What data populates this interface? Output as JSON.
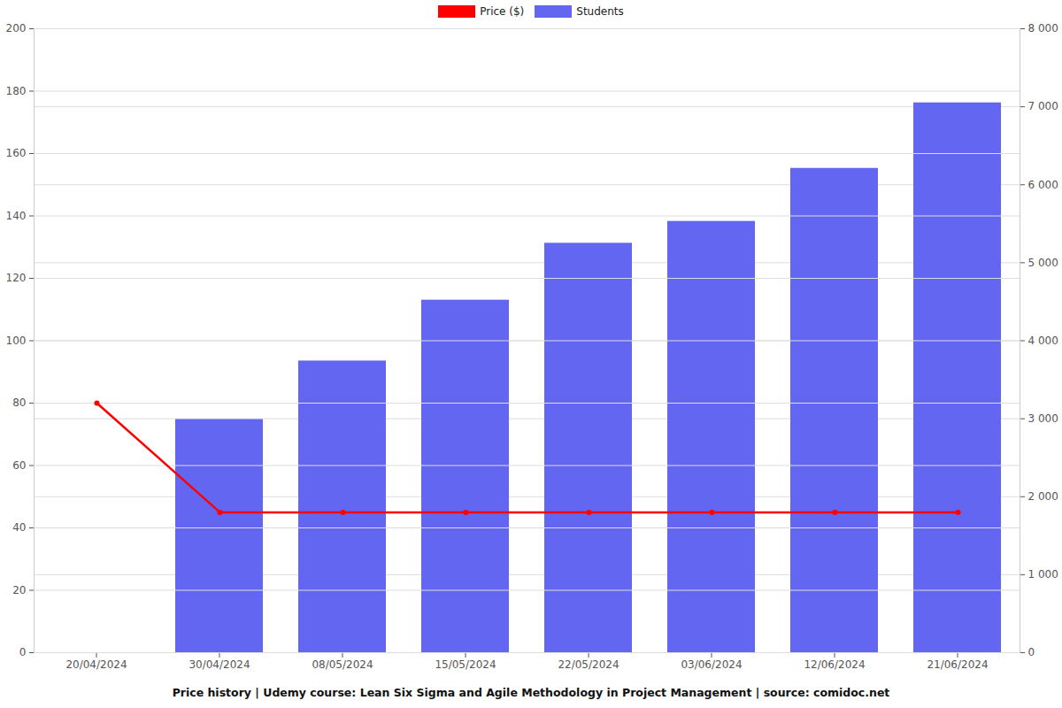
{
  "chart_data": {
    "type": "bar",
    "title": "Price history | Udemy course: Lean Six Sigma and Agile Methodology in Project Management | source: comidoc.net",
    "categories": [
      "20/04/2024",
      "30/04/2024",
      "08/05/2024",
      "15/05/2024",
      "22/05/2024",
      "03/06/2024",
      "12/06/2024",
      "21/06/2024"
    ],
    "series": [
      {
        "name": "Price ($)",
        "type": "line",
        "color": "#ff0000",
        "marker": "circle",
        "values": [
          80,
          45,
          45,
          45,
          45,
          45,
          45,
          45
        ]
      },
      {
        "name": "Students",
        "type": "bar",
        "color": "#6366f1",
        "axis": "y2",
        "values": [
          null,
          2990,
          3740,
          4520,
          5250,
          5530,
          6210,
          7050
        ]
      }
    ],
    "ylim": [
      0,
      200
    ],
    "yticks": [
      0,
      20,
      40,
      60,
      80,
      100,
      120,
      140,
      160,
      180,
      200
    ],
    "y2lim": [
      0,
      8000
    ],
    "y2ticks": [
      0,
      {
        "value": 1000,
        "label": "1 000"
      },
      {
        "value": 2000,
        "label": "2 000"
      },
      {
        "value": 3000,
        "label": "3 000"
      },
      {
        "value": 4000,
        "label": "4 000"
      },
      {
        "value": 5000,
        "label": "5 000"
      },
      {
        "value": 6000,
        "label": "6 000"
      },
      {
        "value": 7000,
        "label": "7 000"
      },
      {
        "value": 8000,
        "label": "8 000"
      }
    ],
    "grid": true,
    "legend": "top"
  }
}
